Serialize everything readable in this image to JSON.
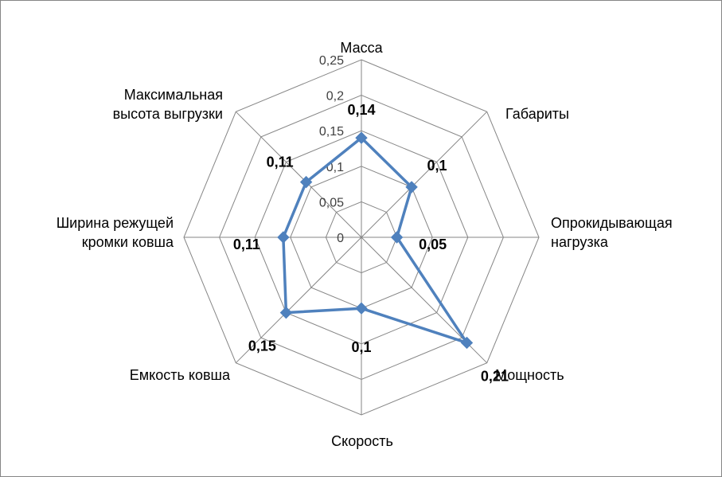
{
  "chart_data": {
    "type": "radar",
    "categories": [
      "Масса",
      "Габариты",
      "Опрокидывающая нагрузка",
      "Мощность",
      "Скорость",
      "Емкость ковша",
      "Ширина режущей кромки ковша",
      "Максимальная высота выгрузки"
    ],
    "category_lines": [
      [
        "Масса"
      ],
      [
        "Габариты"
      ],
      [
        "Опрокидывающая",
        "нагрузка"
      ],
      [
        "Мощность"
      ],
      [
        "Скорость"
      ],
      [
        "Емкость ковша"
      ],
      [
        "Ширина режущей",
        "кромки ковша"
      ],
      [
        "Максимальная",
        "высота выгрузки"
      ]
    ],
    "values": [
      0.14,
      0.1,
      0.05,
      0.21,
      0.1,
      0.15,
      0.11,
      0.11
    ],
    "data_labels": [
      "0,14",
      "0,1",
      "0,05",
      "0,21",
      "0,1",
      "0,15",
      "0,11",
      "0,11"
    ],
    "rlim": [
      0,
      0.25
    ],
    "ticks": [
      0,
      0.05,
      0.1,
      0.15,
      0.2,
      0.25
    ],
    "tick_labels": [
      "0",
      "0,05",
      "0,1",
      "0,15",
      "0,2",
      "0,25"
    ],
    "grid": true,
    "legend": "none",
    "colors": {
      "series": "#4f81bd",
      "grid": "#868686",
      "text": "#000000",
      "tick_text": "#404040"
    }
  }
}
